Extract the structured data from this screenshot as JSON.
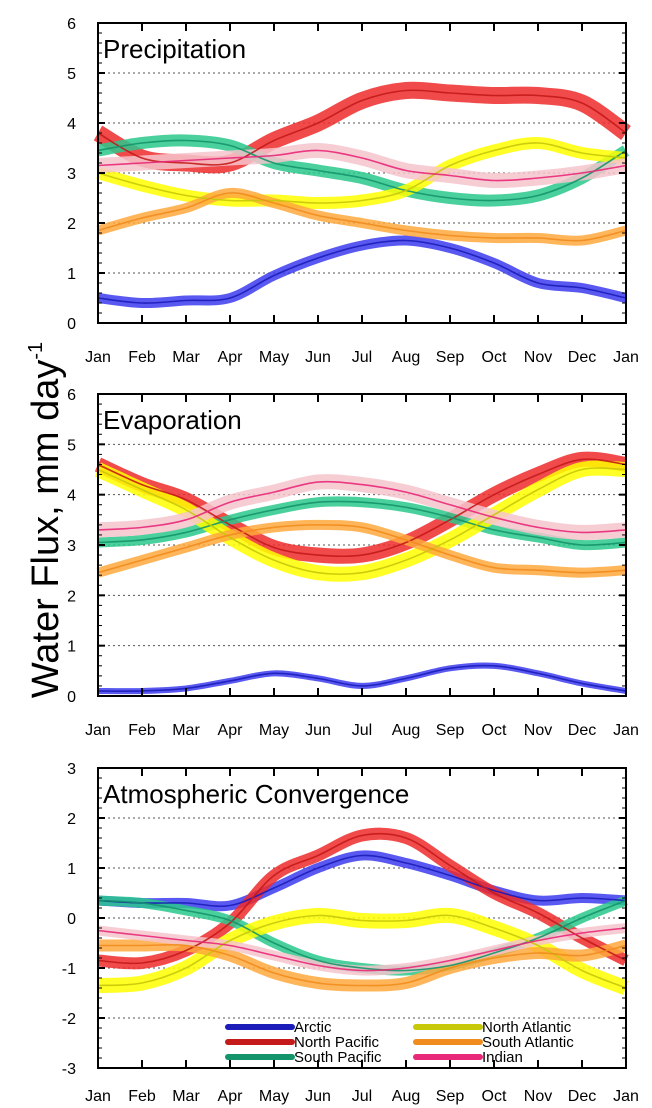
{
  "figure": {
    "ylabel": "Water Flux, mm day",
    "ylabel_exponent": "-1"
  },
  "colors": {
    "Arctic": "#1c1cb8",
    "North Pacific": "#c41a1a",
    "South Pacific": "#14946a",
    "North Atlantic": "#c8c80a",
    "South Atlantic": "#f08c1e",
    "Indian": "#e82878",
    "band_alpha": {
      "Arctic": "#3c3cf0",
      "North Pacific": "#ee2a2a",
      "South Pacific": "#2ac88c",
      "North Atlantic": "#ffff00",
      "South Atlantic": "#ffa83c",
      "Indian": "#f6c4cc"
    }
  },
  "legend": {
    "items": [
      "Arctic",
      "North Pacific",
      "South Pacific",
      "North Atlantic",
      "South Atlantic",
      "Indian"
    ]
  },
  "chart_data": [
    {
      "type": "line",
      "title": "Precipitation",
      "x": [
        "Jan",
        "Feb",
        "Mar",
        "Apr",
        "May",
        "Jun",
        "Jul",
        "Aug",
        "Sep",
        "Oct",
        "Nov",
        "Dec",
        "Jan"
      ],
      "ylim": [
        0,
        6
      ],
      "yticks": [
        0,
        1,
        2,
        3,
        4,
        5,
        6
      ],
      "grid_y": [
        1,
        2,
        3,
        4,
        5
      ],
      "series": [
        {
          "name": "Arctic",
          "values": [
            0.5,
            0.4,
            0.45,
            0.5,
            0.95,
            1.3,
            1.55,
            1.65,
            1.5,
            1.2,
            0.8,
            0.7,
            0.5
          ],
          "band": 0.1
        },
        {
          "name": "North Pacific",
          "values": [
            3.8,
            3.3,
            3.2,
            3.2,
            3.65,
            4.0,
            4.45,
            4.65,
            4.6,
            4.55,
            4.55,
            4.4,
            3.8
          ],
          "band": 0.17
        },
        {
          "name": "South Pacific",
          "values": [
            3.45,
            3.6,
            3.65,
            3.55,
            3.2,
            3.05,
            2.9,
            2.65,
            2.5,
            2.45,
            2.55,
            2.9,
            3.45
          ],
          "band": 0.12
        },
        {
          "name": "North Atlantic",
          "values": [
            3.0,
            2.75,
            2.55,
            2.45,
            2.45,
            2.4,
            2.45,
            2.65,
            3.15,
            3.45,
            3.6,
            3.4,
            3.3
          ],
          "band": 0.12
        },
        {
          "name": "South Atlantic",
          "values": [
            1.85,
            2.1,
            2.3,
            2.6,
            2.4,
            2.15,
            2.0,
            1.85,
            1.75,
            1.7,
            1.7,
            1.65,
            1.85
          ],
          "band": 0.1
        },
        {
          "name": "Indian",
          "values": [
            3.15,
            3.2,
            3.25,
            3.3,
            3.35,
            3.45,
            3.3,
            3.05,
            2.95,
            2.85,
            2.9,
            3.0,
            3.15
          ],
          "band": 0.15
        }
      ]
    },
    {
      "type": "line",
      "title": "Evaporation",
      "x": [
        "Jan",
        "Feb",
        "Mar",
        "Apr",
        "May",
        "Jun",
        "Jul",
        "Aug",
        "Sep",
        "Oct",
        "Nov",
        "Dec",
        "Jan"
      ],
      "ylim": [
        0,
        6
      ],
      "yticks": [
        0,
        1,
        2,
        3,
        4,
        5,
        6
      ],
      "grid_y": [
        1,
        2,
        3,
        4,
        5
      ],
      "series": [
        {
          "name": "Arctic",
          "values": [
            0.1,
            0.1,
            0.15,
            0.3,
            0.45,
            0.35,
            0.2,
            0.35,
            0.55,
            0.6,
            0.45,
            0.25,
            0.1
          ],
          "band": 0.06
        },
        {
          "name": "North Pacific",
          "values": [
            4.6,
            4.2,
            3.9,
            3.4,
            2.95,
            2.8,
            2.8,
            3.05,
            3.5,
            4.0,
            4.4,
            4.7,
            4.6
          ],
          "band": 0.15
        },
        {
          "name": "South Pacific",
          "values": [
            3.05,
            3.1,
            3.25,
            3.5,
            3.7,
            3.85,
            3.85,
            3.75,
            3.55,
            3.3,
            3.15,
            3.0,
            3.05
          ],
          "band": 0.1
        },
        {
          "name": "North Atlantic",
          "values": [
            4.5,
            4.1,
            3.7,
            3.15,
            2.7,
            2.45,
            2.45,
            2.7,
            3.1,
            3.6,
            4.1,
            4.5,
            4.5
          ],
          "band": 0.15
        },
        {
          "name": "South Atlantic",
          "values": [
            2.45,
            2.7,
            2.95,
            3.2,
            3.35,
            3.4,
            3.35,
            3.1,
            2.8,
            2.55,
            2.5,
            2.45,
            2.5
          ],
          "band": 0.1
        },
        {
          "name": "Indian",
          "values": [
            3.3,
            3.35,
            3.5,
            3.85,
            4.05,
            4.25,
            4.2,
            4.05,
            3.8,
            3.55,
            3.35,
            3.25,
            3.3
          ],
          "band": 0.15
        }
      ]
    },
    {
      "type": "line",
      "title": "Atmospheric Convergence",
      "x": [
        "Jan",
        "Feb",
        "Mar",
        "Apr",
        "May",
        "Jun",
        "Jul",
        "Aug",
        "Sep",
        "Oct",
        "Nov",
        "Dec",
        "Jan"
      ],
      "ylim": [
        -3,
        3
      ],
      "yticks": [
        -3,
        -2,
        -1,
        0,
        1,
        2,
        3
      ],
      "grid_y": [
        -2,
        -1,
        0,
        1,
        2
      ],
      "series": [
        {
          "name": "Arctic",
          "values": [
            0.35,
            0.3,
            0.3,
            0.25,
            0.6,
            1.0,
            1.25,
            1.1,
            0.85,
            0.55,
            0.35,
            0.4,
            0.35
          ],
          "band": 0.1
        },
        {
          "name": "North Pacific",
          "values": [
            -0.85,
            -0.9,
            -0.65,
            -0.1,
            0.85,
            1.25,
            1.65,
            1.6,
            1.05,
            0.5,
            0.1,
            -0.4,
            -0.85
          ],
          "band": 0.12
        },
        {
          "name": "South Pacific",
          "values": [
            0.35,
            0.3,
            0.15,
            -0.05,
            -0.5,
            -0.85,
            -1.0,
            -1.05,
            -0.95,
            -0.7,
            -0.4,
            0.0,
            0.35
          ],
          "band": 0.1
        },
        {
          "name": "North Atlantic",
          "values": [
            -1.35,
            -1.3,
            -1.0,
            -0.45,
            -0.1,
            0.05,
            -0.05,
            -0.05,
            0.05,
            -0.2,
            -0.55,
            -1.05,
            -1.4
          ],
          "band": 0.15
        },
        {
          "name": "South Atlantic",
          "values": [
            -0.55,
            -0.55,
            -0.55,
            -0.75,
            -1.1,
            -1.3,
            -1.35,
            -1.3,
            -1.0,
            -0.8,
            -0.7,
            -0.75,
            -0.55
          ],
          "band": 0.12
        },
        {
          "name": "Indian",
          "values": [
            -0.25,
            -0.35,
            -0.45,
            -0.55,
            -0.75,
            -0.95,
            -1.05,
            -1.0,
            -0.85,
            -0.65,
            -0.45,
            -0.3,
            -0.2
          ],
          "band": 0.1
        }
      ]
    }
  ]
}
